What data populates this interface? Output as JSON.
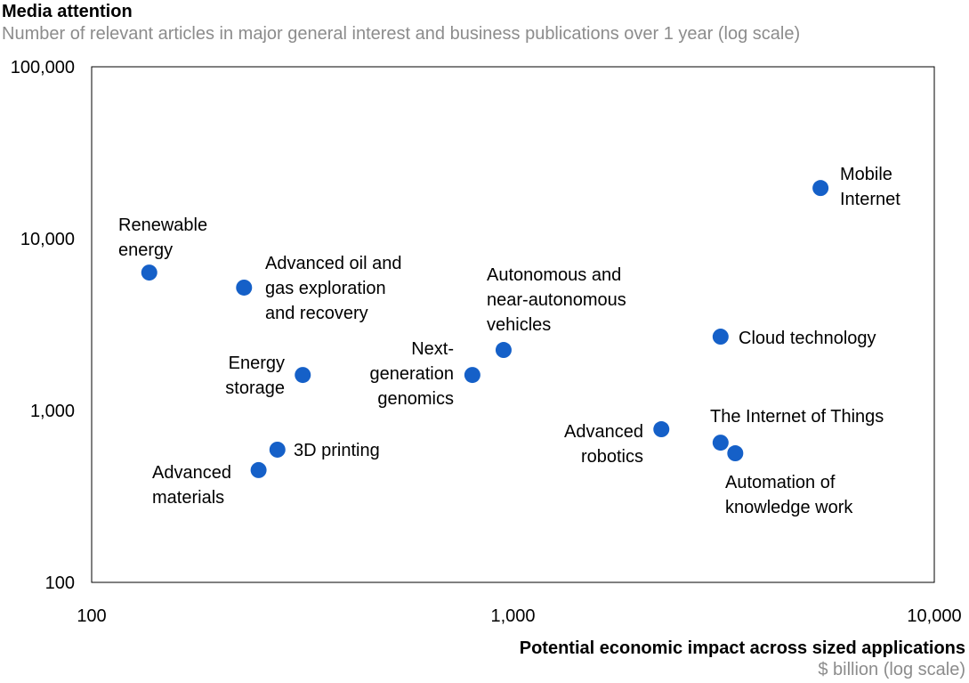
{
  "chart_data": {
    "type": "scatter",
    "title": "Media attention",
    "subtitle": "Number of relevant articles in major general interest and business publications over 1 year (log scale)",
    "xlabel": "Potential economic impact across sized applications",
    "xlabel_sub": "$ billion (log scale)",
    "x_scale": "log",
    "y_scale": "log",
    "xlim": [
      100,
      10000
    ],
    "ylim": [
      100,
      100000
    ],
    "x_ticks": [
      "100",
      "1,000",
      "10,000"
    ],
    "y_ticks": [
      "100,000",
      "10,000",
      "1,000",
      "100"
    ],
    "grid": false,
    "point_color": "#1560c8",
    "points": [
      {
        "label": [
          "Renewable",
          "energy"
        ],
        "x": 137,
        "y": 6350
      },
      {
        "label": [
          "Advanced oil and",
          "gas exploration",
          "and recovery"
        ],
        "x": 230,
        "y": 5190
      },
      {
        "label": [
          "Energy",
          "storage"
        ],
        "x": 317,
        "y": 1610
      },
      {
        "label": [
          "3D printing"
        ],
        "x": 276,
        "y": 592
      },
      {
        "label": [
          "Advanced",
          "materials"
        ],
        "x": 249,
        "y": 450
      },
      {
        "label": [
          "Next-",
          "generation",
          "genomics"
        ],
        "x": 801,
        "y": 1610
      },
      {
        "label": [
          "Autonomous and",
          "near-autonomous",
          "vehicles"
        ],
        "x": 950,
        "y": 2250
      },
      {
        "label": [
          "Advanced",
          "robotics"
        ],
        "x": 2250,
        "y": 778
      },
      {
        "label": [
          "Cloud technology"
        ],
        "x": 3110,
        "y": 2690
      },
      {
        "label": [
          "The Internet of Things"
        ],
        "x": 3110,
        "y": 650
      },
      {
        "label": [
          "Automation of",
          "knowledge work"
        ],
        "x": 3370,
        "y": 564
      },
      {
        "label": [
          "Mobile",
          "Internet"
        ],
        "x": 5370,
        "y": 19700
      }
    ]
  }
}
